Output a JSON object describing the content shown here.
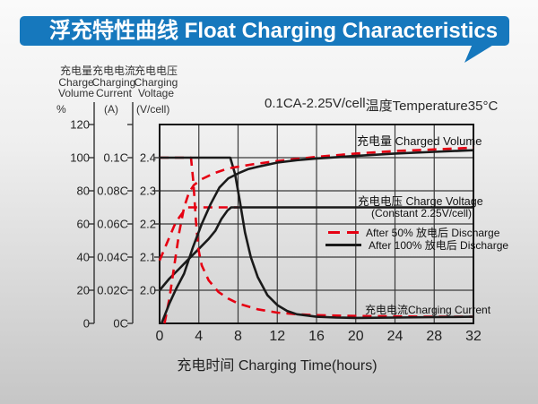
{
  "header": {
    "title": "浮充特性曲线 Float Charging Characteristics",
    "bg_color": "#1678bd",
    "text_color": "#ffffff"
  },
  "subtitle": {
    "condition": "0.1CA-2.25V/cell",
    "temperature": "温度Temperature35°C"
  },
  "axes": {
    "y1": {
      "title_cn": "充电量",
      "title_en1": "Charge",
      "title_en2": "Volume",
      "unit": "%",
      "ticks": [
        "120",
        "100",
        "80",
        "60",
        "40",
        "20",
        "0"
      ]
    },
    "y2": {
      "title_cn": "充电电流",
      "title_en1": "Charging",
      "title_en2": "Current",
      "unit": "(A)",
      "ticks": [
        "0.1C",
        "0.08C",
        "0.06C",
        "0.04C",
        "0.02C",
        "0C"
      ]
    },
    "y3": {
      "title_cn": "充电电压",
      "title_en1": "Charging",
      "title_en2": "Voltage",
      "unit": "(V/cell)",
      "ticks": [
        "2.4",
        "2.3",
        "2.2",
        "2.1",
        "2.0"
      ]
    },
    "x": {
      "title": "充电时间 Charging Time(hours)",
      "ticks": [
        "0",
        "4",
        "8",
        "12",
        "16",
        "20",
        "24",
        "28",
        "32"
      ]
    }
  },
  "labels": {
    "charged_volume": "充电量 Charged Volume",
    "charge_voltage": "充电电压 Charge Voltage",
    "charge_voltage_sub": "(Constant 2.25V/cell)",
    "charging_current": "充电电流Charging Current"
  },
  "legend": [
    {
      "label": "After 50%  放电后 Discharge",
      "color": "#e60012",
      "style": "dashed"
    },
    {
      "label": "After 100%  放电后 Discharge",
      "color": "#1a1a1a",
      "style": "solid"
    }
  ],
  "colors": {
    "red_series": "#e60012",
    "black_series": "#1a1a1a",
    "grid": "#3a3a3a",
    "plot_border": "#111111",
    "plot_bg": "#ffffff"
  },
  "chart_data": {
    "type": "line",
    "title": "浮充特性曲线 Float Charging Characteristics",
    "xlabel": "充电时间 Charging Time(hours)",
    "x_range": [
      0,
      32
    ],
    "x_ticks": [
      0,
      4,
      8,
      12,
      16,
      20,
      24,
      28,
      32
    ],
    "grid": true,
    "y_axes": {
      "volume_pct": {
        "range": [
          0,
          120
        ],
        "ticks": [
          0,
          20,
          40,
          60,
          80,
          100,
          120
        ],
        "unit": "%"
      },
      "current_CA": {
        "ticks": [
          "0C",
          "0.02C",
          "0.04C",
          "0.06C",
          "0.08C",
          "0.1C"
        ],
        "unit": "A",
        "alignment": "0.1C aligned with 100% volume"
      },
      "voltage_V": {
        "ticks": [
          2.0,
          2.1,
          2.2,
          2.3,
          2.4
        ],
        "unit": "V/cell",
        "alignment": "2.4V aligned with 100% volume, 2.0V with 20%"
      }
    },
    "series": [
      {
        "name": "charge-voltage-after-50pct-discharge",
        "scale": "voltage",
        "color": "#e60012",
        "line": "dashed",
        "points": [
          [
            0,
            2.09
          ],
          [
            0.5,
            2.125
          ],
          [
            1,
            2.16
          ],
          [
            1.5,
            2.195
          ],
          [
            2,
            2.22
          ],
          [
            2.5,
            2.24
          ],
          [
            2.9,
            2.25
          ],
          [
            5,
            2.25
          ],
          [
            8,
            2.25
          ]
        ]
      },
      {
        "name": "charge-voltage-after-100pct-discharge",
        "scale": "voltage",
        "color": "#1a1a1a",
        "line": "solid",
        "points": [
          [
            0,
            2.0
          ],
          [
            1,
            2.035
          ],
          [
            2,
            2.065
          ],
          [
            3,
            2.095
          ],
          [
            4,
            2.125
          ],
          [
            5,
            2.155
          ],
          [
            5.7,
            2.18
          ],
          [
            6.3,
            2.215
          ],
          [
            6.9,
            2.24
          ],
          [
            7.3,
            2.25
          ],
          [
            12,
            2.25
          ],
          [
            32,
            2.25
          ]
        ]
      },
      {
        "name": "charging-current-after-50pct-discharge",
        "scale": "current",
        "color": "#e60012",
        "line": "dashed",
        "points": [
          [
            0,
            0.1
          ],
          [
            3.2,
            0.1
          ],
          [
            3.45,
            0.085
          ],
          [
            3.7,
            0.062
          ],
          [
            3.95,
            0.045
          ],
          [
            4.3,
            0.035
          ],
          [
            5,
            0.026
          ],
          [
            6,
            0.019
          ],
          [
            7,
            0.015
          ],
          [
            8,
            0.012
          ],
          [
            10,
            0.0085
          ],
          [
            12,
            0.0065
          ],
          [
            14,
            0.0055
          ],
          [
            16,
            0.005
          ],
          [
            20,
            0.0045
          ],
          [
            24,
            0.0042
          ],
          [
            28,
            0.004
          ],
          [
            32,
            0.004
          ]
        ]
      },
      {
        "name": "charging-current-after-100pct-discharge",
        "scale": "current",
        "color": "#1a1a1a",
        "line": "solid",
        "points": [
          [
            0,
            0.1
          ],
          [
            7.2,
            0.1
          ],
          [
            7.7,
            0.09
          ],
          [
            8.2,
            0.073
          ],
          [
            8.7,
            0.055
          ],
          [
            9.3,
            0.04
          ],
          [
            10,
            0.028
          ],
          [
            11,
            0.017
          ],
          [
            12,
            0.011
          ],
          [
            13,
            0.0075
          ],
          [
            14,
            0.0055
          ],
          [
            16,
            0.004
          ],
          [
            18,
            0.0035
          ],
          [
            20,
            0.0033
          ],
          [
            24,
            0.0035
          ],
          [
            28,
            0.0038
          ],
          [
            32,
            0.004
          ]
        ]
      },
      {
        "name": "charged-volume-after-50pct-discharge",
        "scale": "volume",
        "color": "#e60012",
        "line": "dashed",
        "points": [
          [
            0.5,
            0
          ],
          [
            1,
            15
          ],
          [
            1.5,
            35
          ],
          [
            2,
            55
          ],
          [
            2.5,
            70
          ],
          [
            3,
            79
          ],
          [
            3.5,
            83.5
          ],
          [
            4.3,
            87
          ],
          [
            5.5,
            90.5
          ],
          [
            7,
            93.5
          ],
          [
            9.5,
            96
          ],
          [
            12,
            98
          ],
          [
            16,
            100.5
          ],
          [
            20,
            102.5
          ],
          [
            24,
            104
          ],
          [
            28,
            105
          ],
          [
            32,
            106
          ]
        ]
      },
      {
        "name": "charged-volume-after-100pct-discharge",
        "scale": "volume",
        "color": "#1a1a1a",
        "line": "solid",
        "points": [
          [
            0.2,
            0
          ],
          [
            1,
            12
          ],
          [
            1.7,
            21
          ],
          [
            2.5,
            30
          ],
          [
            3.4,
            46
          ],
          [
            4.3,
            60
          ],
          [
            5.2,
            72
          ],
          [
            6.1,
            82
          ],
          [
            7,
            87.5
          ],
          [
            8,
            90.5
          ],
          [
            9,
            93
          ],
          [
            10,
            94.5
          ],
          [
            12,
            97
          ],
          [
            14,
            98.5
          ],
          [
            16,
            99.5
          ],
          [
            20,
            101
          ],
          [
            24,
            102.5
          ],
          [
            28,
            103.5
          ],
          [
            32,
            104.5
          ]
        ]
      }
    ],
    "annotations": [
      "充电量 Charged Volume",
      "充电电压 Charge Voltage (Constant 2.25V/cell)",
      "After 50%  放电后 Discharge",
      "After 100%  放电后 Discharge",
      "充电电流Charging Current",
      "0.1CA-2.25V/cell  温度Temperature35°C"
    ],
    "legend_position": "inside-right"
  }
}
